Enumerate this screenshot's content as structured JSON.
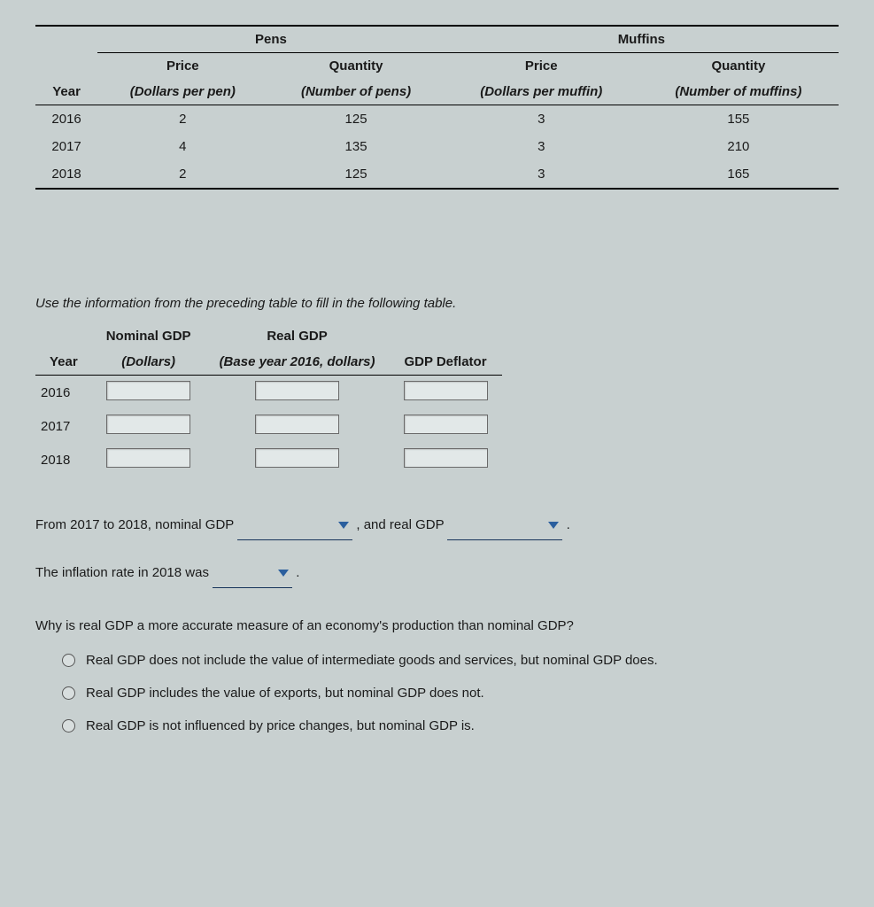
{
  "dataTable": {
    "groupHeaders": {
      "pens": "Pens",
      "muffins": "Muffins"
    },
    "subHeaders": {
      "year": "Year",
      "penPrice": "Price",
      "penQty": "Quantity",
      "mufPrice": "Price",
      "mufQty": "Quantity"
    },
    "unitHeaders": {
      "penPrice": "(Dollars per pen)",
      "penQty": "(Number of pens)",
      "mufPrice": "(Dollars per muffin)",
      "mufQty": "(Number of muffins)"
    },
    "rows": [
      {
        "year": "2016",
        "penPrice": "2",
        "penQty": "125",
        "mufPrice": "3",
        "mufQty": "155"
      },
      {
        "year": "2017",
        "penPrice": "4",
        "penQty": "135",
        "mufPrice": "3",
        "mufQty": "210"
      },
      {
        "year": "2018",
        "penPrice": "2",
        "penQty": "125",
        "mufPrice": "3",
        "mufQty": "165"
      }
    ]
  },
  "instruction": "Use the information from the preceding table to fill in the following table.",
  "gdpTable": {
    "headers": {
      "year": "Year",
      "nominal": "Nominal GDP",
      "nominalUnit": "(Dollars)",
      "real": "Real GDP",
      "realUnit": "(Base year 2016, dollars)",
      "deflator": "GDP Deflator"
    },
    "years": [
      "2016",
      "2017",
      "2018"
    ]
  },
  "sentence1": {
    "part1": "From 2017 to 2018, nominal GDP ",
    "part2": " , and real GDP ",
    "part3": " ."
  },
  "sentence2": {
    "part1": "The inflation rate in 2018 was ",
    "part2": " ."
  },
  "question": "Why is real GDP a more accurate measure of an economy's production than nominal GDP?",
  "options": [
    "Real GDP does not include the value of intermediate goods and services, but nominal GDP does.",
    "Real GDP includes the value of exports, but nominal GDP does not.",
    "Real GDP is not influenced by price changes, but nominal GDP is."
  ]
}
